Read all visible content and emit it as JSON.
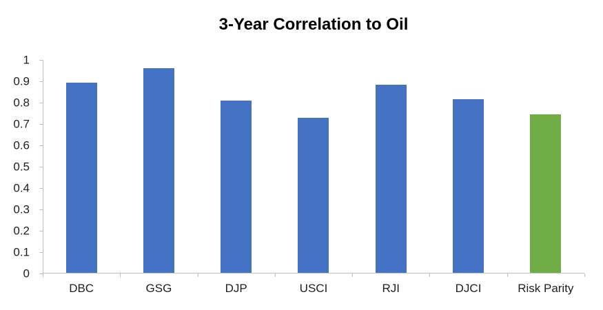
{
  "chart_data": {
    "type": "bar",
    "title": "3-Year Correlation to Oil",
    "categories": [
      "DBC",
      "GSG",
      "DJP",
      "USCI",
      "RJI",
      "DJCI",
      "Risk Parity"
    ],
    "values": [
      0.895,
      0.96,
      0.81,
      0.73,
      0.885,
      0.815,
      0.745
    ],
    "bar_colors": [
      "#4472C4",
      "#4472C4",
      "#4472C4",
      "#4472C4",
      "#4472C4",
      "#4472C4",
      "#70AD47"
    ],
    "highlight_category": "Risk Parity",
    "xlabel": "",
    "ylabel": "",
    "ylim": [
      0,
      1
    ],
    "yticks": [
      0,
      0.1,
      0.2,
      0.3,
      0.4,
      0.5,
      0.6,
      0.7,
      0.8,
      0.9,
      1
    ],
    "ytick_labels": [
      "0",
      "0.1",
      "0.2",
      "0.3",
      "0.4",
      "0.5",
      "0.6",
      "0.7",
      "0.8",
      "0.9",
      "1"
    ],
    "grid": false,
    "legend": "none",
    "colors": {
      "bar_blue": "#4472C4",
      "bar_green": "#70AD47",
      "axis": "#BFBFBF",
      "tick_text": "#1F1F1F",
      "title_text": "#000000",
      "background": "#FFFFFF"
    }
  }
}
